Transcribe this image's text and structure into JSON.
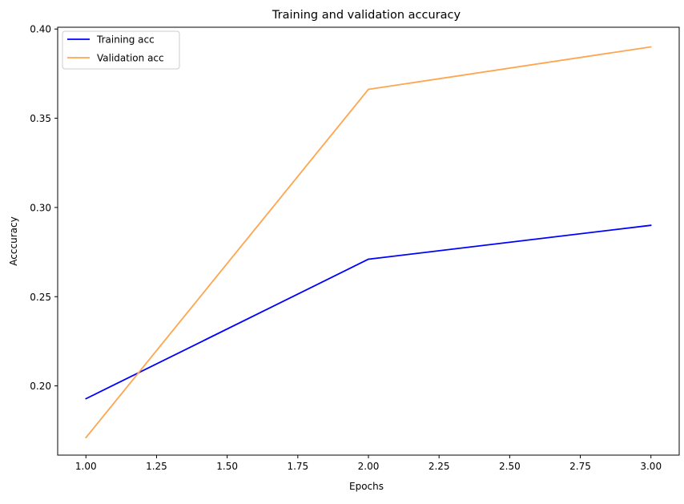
{
  "chart_data": {
    "type": "line",
    "title": "Training and validation accuracy",
    "xlabel": "Epochs",
    "ylabel": "Acccuracy",
    "x": [
      1,
      2,
      3
    ],
    "series": [
      {
        "name": "Training acc",
        "values": [
          0.1928,
          0.271,
          0.29
        ],
        "color": "#0000ff"
      },
      {
        "name": "Validation acc",
        "values": [
          0.171,
          0.3662,
          0.39
        ],
        "color": "#ffa54f"
      }
    ],
    "xlim": [
      0.9,
      3.1
    ],
    "ylim": [
      0.1612,
      0.401
    ],
    "xticks": [
      1.0,
      1.25,
      1.5,
      1.75,
      2.0,
      2.25,
      2.5,
      2.75,
      3.0
    ],
    "xtick_labels": [
      "1.00",
      "1.25",
      "1.50",
      "1.75",
      "2.00",
      "2.25",
      "2.50",
      "2.75",
      "3.00"
    ],
    "yticks": [
      0.2,
      0.25,
      0.3,
      0.35,
      0.4
    ],
    "ytick_labels": [
      "0.20",
      "0.25",
      "0.30",
      "0.35",
      "0.40"
    ],
    "grid": false,
    "legend_position": "upper left"
  }
}
